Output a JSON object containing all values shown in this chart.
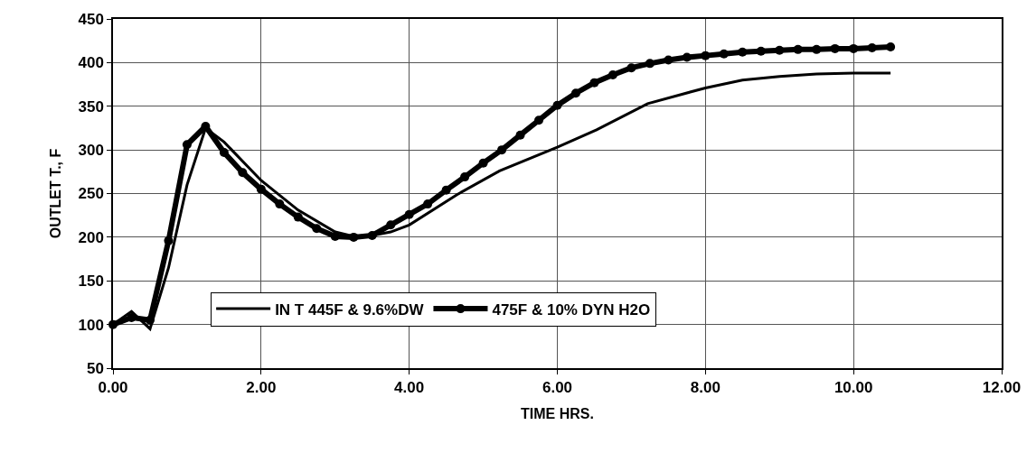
{
  "chart_data": {
    "type": "line",
    "xlabel": "TIME HRS.",
    "ylabel": "OUTLET T., F",
    "xlim": [
      0,
      12
    ],
    "xticks": [
      {
        "value": 0,
        "label": "0.00"
      },
      {
        "value": 2,
        "label": "2.00"
      },
      {
        "value": 4,
        "label": "4.00"
      },
      {
        "value": 6,
        "label": "6.00"
      },
      {
        "value": 8,
        "label": "8.00"
      },
      {
        "value": 10,
        "label": "10.00"
      },
      {
        "value": 12,
        "label": "12.00"
      }
    ],
    "ylim": [
      50,
      450
    ],
    "yticks": [
      50,
      100,
      150,
      200,
      250,
      300,
      350,
      400,
      450
    ],
    "grid": true,
    "legend": "bottom",
    "series": [
      {
        "name": "IN T 445F & 9.6%DW",
        "color": "#000000",
        "marker": "none",
        "x": [
          0,
          0.25,
          0.5,
          0.75,
          1.0,
          1.25,
          1.5,
          2.0,
          2.5,
          3.0,
          3.25,
          3.5,
          3.75,
          4.0,
          4.65,
          5.22,
          6.0,
          6.53,
          7.22,
          8.0,
          8.5,
          9.0,
          9.5,
          10.0,
          10.5
        ],
        "values": [
          100,
          115,
          95,
          165,
          260,
          325,
          309,
          265,
          231,
          206,
          201,
          202,
          206,
          214,
          249,
          276,
          303,
          323,
          353,
          371,
          380,
          384,
          387,
          388,
          388
        ]
      },
      {
        "name": "475F & 10% DYN H2O",
        "color": "#000000",
        "marker": "circle",
        "x": [
          0,
          0.25,
          0.5,
          0.75,
          1.0,
          1.25,
          1.5,
          1.75,
          2.0,
          2.25,
          2.5,
          2.75,
          3.0,
          3.25,
          3.5,
          3.75,
          4.0,
          4.25,
          4.5,
          4.75,
          5.0,
          5.25,
          5.5,
          5.75,
          6.0,
          6.25,
          6.5,
          6.75,
          7.0,
          7.25,
          7.5,
          7.75,
          8.0,
          8.25,
          8.5,
          8.75,
          9.0,
          9.25,
          9.5,
          9.75,
          10.0,
          10.25,
          10.5
        ],
        "values": [
          100,
          108,
          105,
          196,
          306,
          327,
          297,
          274,
          255,
          238,
          223,
          210,
          201,
          200,
          202,
          214,
          226,
          238,
          254,
          269,
          285,
          300,
          317,
          334,
          351,
          365,
          377,
          386,
          394,
          399,
          403,
          406,
          408,
          410,
          412,
          413,
          414,
          415,
          415,
          416,
          416,
          417,
          418
        ]
      }
    ]
  }
}
